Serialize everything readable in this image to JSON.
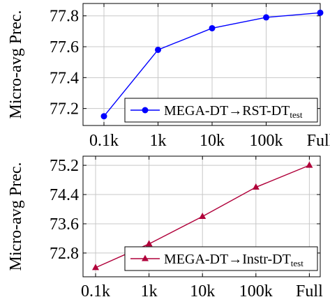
{
  "chart_data": [
    {
      "type": "line",
      "categories": [
        "0.1k",
        "1k",
        "10k",
        "100k",
        "Full"
      ],
      "series": [
        {
          "name": "MEGA-DT→RST-DT",
          "name_subscript": "test",
          "values": [
            77.15,
            77.58,
            77.72,
            77.79,
            77.82
          ],
          "color": "#0000ff",
          "marker": "circle"
        }
      ],
      "xlabel": "",
      "ylabel": "Micro-avg Prec.",
      "yticks": [
        "77.2",
        "77.4",
        "77.6",
        "77.8"
      ],
      "ylim": [
        77.09,
        77.88
      ],
      "grid": true,
      "legend_position": "bottom-right"
    },
    {
      "type": "line",
      "categories": [
        "0.1k",
        "1k",
        "10k",
        "100k",
        "Full"
      ],
      "series": [
        {
          "name": "MEGA-DT→Instr-DT",
          "name_subscript": "test",
          "values": [
            72.4,
            73.05,
            73.8,
            74.6,
            75.2
          ],
          "color": "#b0003a",
          "marker": "triangle"
        }
      ],
      "xlabel": "",
      "ylabel": "Micro-avg Prec.",
      "yticks": [
        "72.8",
        "73.6",
        "74.4",
        "75.2"
      ],
      "ylim": [
        72.15,
        75.45
      ],
      "grid": true,
      "legend_position": "bottom-right"
    }
  ]
}
